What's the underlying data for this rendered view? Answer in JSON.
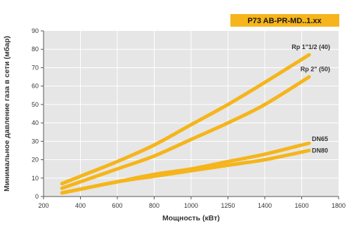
{
  "chart_data": {
    "type": "line",
    "title": "P73 AB-PR-MD..1.xx",
    "xlabel": "Мощность (кВт)",
    "ylabel": "Минимальное давление газа в сети (мбар)",
    "xlim": [
      200,
      1800
    ],
    "ylim": [
      0,
      90
    ],
    "xticks": [
      200,
      400,
      600,
      800,
      1000,
      1250,
      1400,
      1600,
      1800
    ],
    "xtick_labels": [
      "200",
      "400",
      "600",
      "800",
      "1000",
      "1250",
      "1400",
      "1600",
      "1800"
    ],
    "yticks": [
      0,
      10,
      20,
      30,
      40,
      50,
      60,
      70,
      80,
      90
    ],
    "grid": true,
    "colors": {
      "plot_background": "#e6e6e6",
      "grid": "#ffffff",
      "series": "#f5b51b",
      "title_box": "#f5b51b"
    },
    "series": [
      {
        "name": "Rp 1\"1/2 (40)",
        "x": [
          300,
          400,
          600,
          800,
          1000,
          1200,
          1400,
          1640
        ],
        "y": [
          7,
          11,
          19,
          28,
          39,
          50,
          62,
          77
        ]
      },
      {
        "name": "Rp 2\" (50)",
        "x": [
          300,
          400,
          600,
          800,
          1000,
          1200,
          1400,
          1640
        ],
        "y": [
          4.5,
          8,
          15,
          22,
          31,
          40,
          50,
          65
        ]
      },
      {
        "name": "DN65",
        "x": [
          300,
          400,
          600,
          800,
          1000,
          1200,
          1400,
          1640
        ],
        "y": [
          2,
          4,
          8,
          12,
          15,
          19,
          23,
          29
        ]
      },
      {
        "name": "DN80",
        "x": [
          300,
          400,
          600,
          800,
          1000,
          1200,
          1400,
          1640
        ],
        "y": [
          2,
          4,
          8,
          11,
          14,
          17,
          20,
          25
        ]
      }
    ]
  }
}
